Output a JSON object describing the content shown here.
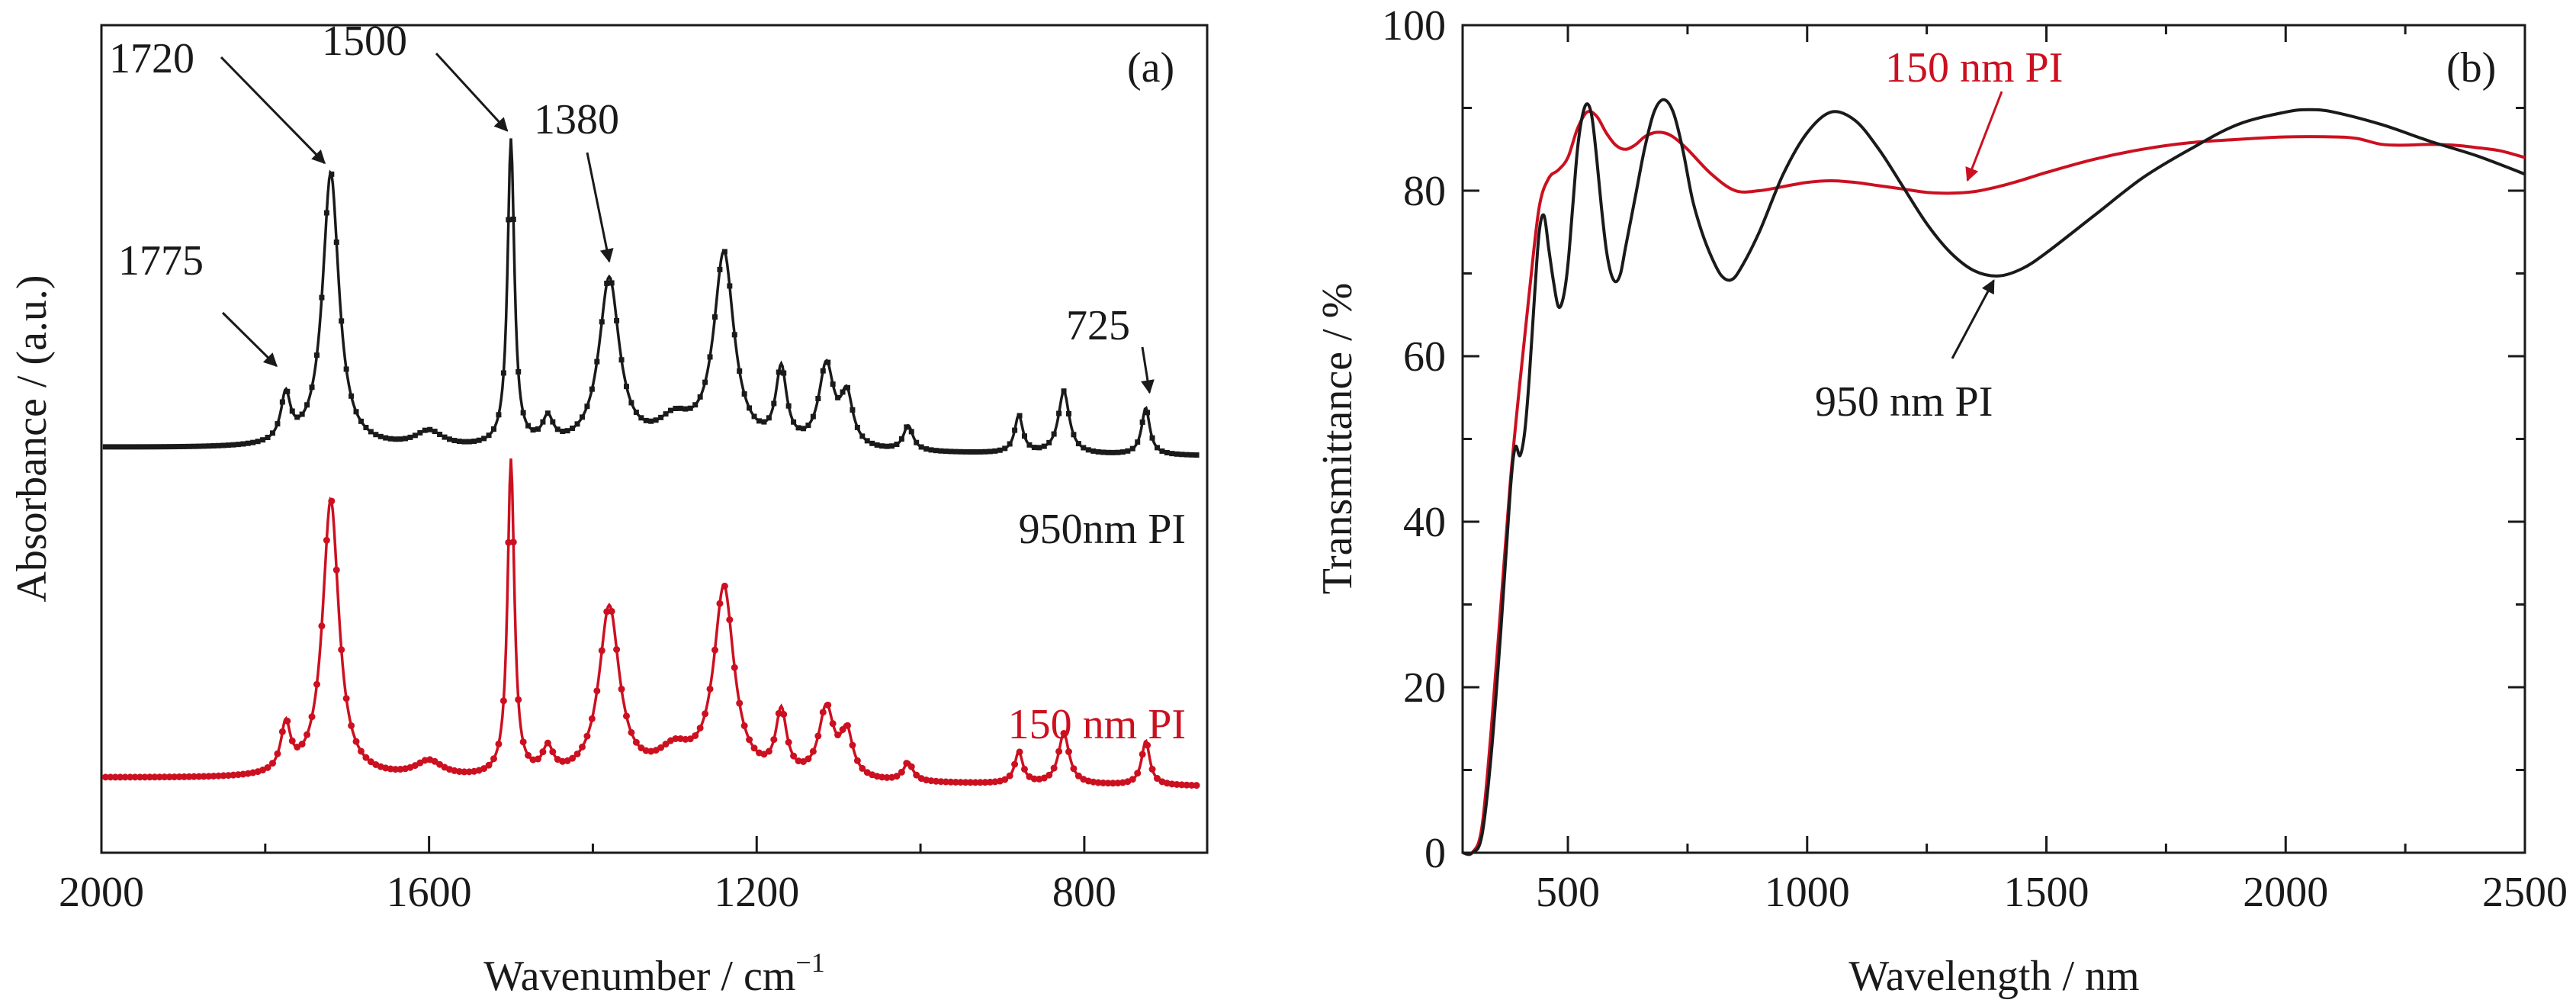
{
  "figure": {
    "panel_a_label": "(a)",
    "panel_b_label": "(b)"
  },
  "colors": {
    "black_series": "#1a1a1a",
    "red_series": "#cc1020",
    "axis": "#1a1a1a"
  },
  "chart_data": [
    {
      "type": "line",
      "panel": "(a)",
      "xlabel": "Wavenumber / cm",
      "xlabel_superscript": "−1",
      "ylabel": "Absorbance / (a.u.)",
      "xlim": [
        2000,
        650
      ],
      "x_reversed": true,
      "xticks": [
        2000,
        1600,
        1200,
        800
      ],
      "y_ticks_shown": false,
      "series": [
        {
          "name": "950nm PI",
          "color": "#1a1a1a",
          "baseline": 0.055,
          "baseline_tilt": -0.022,
          "peaks": [
            {
              "x": 1775,
              "h": 0.075,
              "w": 7
            },
            {
              "x": 1720,
              "h": 0.44,
              "w": 12
            },
            {
              "x": 1600,
              "h": 0.025,
              "w": 20
            },
            {
              "x": 1500,
              "h": 0.49,
              "w": 5
            },
            {
              "x": 1455,
              "h": 0.04,
              "w": 8
            },
            {
              "x": 1380,
              "h": 0.27,
              "w": 15
            },
            {
              "x": 1300,
              "h": 0.04,
              "w": 25
            },
            {
              "x": 1240,
              "h": 0.31,
              "w": 15
            },
            {
              "x": 1170,
              "h": 0.12,
              "w": 8
            },
            {
              "x": 1115,
              "h": 0.13,
              "w": 11
            },
            {
              "x": 1090,
              "h": 0.08,
              "w": 9
            },
            {
              "x": 1015,
              "h": 0.04,
              "w": 7
            },
            {
              "x": 880,
              "h": 0.06,
              "w": 6
            },
            {
              "x": 825,
              "h": 0.1,
              "w": 8
            },
            {
              "x": 725,
              "h": 0.075,
              "w": 6
            }
          ]
        },
        {
          "name": "150 nm PI",
          "color": "#cc1020",
          "baseline": 0.055,
          "baseline_tilt": -0.022,
          "peaks": [
            {
              "x": 1775,
              "h": 0.075,
              "w": 7
            },
            {
              "x": 1720,
              "h": 0.44,
              "w": 12
            },
            {
              "x": 1600,
              "h": 0.025,
              "w": 20
            },
            {
              "x": 1500,
              "h": 0.5,
              "w": 5
            },
            {
              "x": 1455,
              "h": 0.04,
              "w": 8
            },
            {
              "x": 1380,
              "h": 0.27,
              "w": 15
            },
            {
              "x": 1300,
              "h": 0.04,
              "w": 25
            },
            {
              "x": 1240,
              "h": 0.3,
              "w": 15
            },
            {
              "x": 1170,
              "h": 0.1,
              "w": 8
            },
            {
              "x": 1115,
              "h": 0.11,
              "w": 11
            },
            {
              "x": 1090,
              "h": 0.07,
              "w": 9
            },
            {
              "x": 1015,
              "h": 0.03,
              "w": 7
            },
            {
              "x": 880,
              "h": 0.05,
              "w": 6
            },
            {
              "x": 825,
              "h": 0.08,
              "w": 8
            },
            {
              "x": 725,
              "h": 0.07,
              "w": 6
            }
          ]
        }
      ],
      "annotations": [
        {
          "text": "1775",
          "peak_x": 1775
        },
        {
          "text": "1720",
          "peak_x": 1720
        },
        {
          "text": "1500",
          "peak_x": 1500
        },
        {
          "text": "1380",
          "peak_x": 1380
        },
        {
          "text": "725",
          "peak_x": 725
        }
      ]
    },
    {
      "type": "line",
      "panel": "(b)",
      "xlabel": "Wavelength / nm",
      "ylabel": "Transmittance  / %",
      "xlim": [
        280,
        2500
      ],
      "ylim": [
        0,
        100
      ],
      "xticks": [
        500,
        1000,
        1500,
        2000,
        2500
      ],
      "yticks": [
        0,
        20,
        40,
        60,
        80,
        100
      ],
      "series": [
        {
          "name": "150 nm PI",
          "color": "#cc1020",
          "points": [
            [
              280,
              0
            ],
            [
              300,
              0
            ],
            [
              320,
              3
            ],
            [
              340,
              15
            ],
            [
              360,
              30
            ],
            [
              380,
              45
            ],
            [
              400,
              57
            ],
            [
              420,
              68
            ],
            [
              440,
              78
            ],
            [
              460,
              81.5
            ],
            [
              480,
              82.5
            ],
            [
              500,
              84
            ],
            [
              520,
              87.5
            ],
            [
              540,
              89.5
            ],
            [
              560,
              89
            ],
            [
              580,
              87
            ],
            [
              600,
              85.5
            ],
            [
              620,
              85
            ],
            [
              640,
              85.5
            ],
            [
              660,
              86.5
            ],
            [
              680,
              87
            ],
            [
              700,
              87
            ],
            [
              720,
              86.5
            ],
            [
              750,
              85
            ],
            [
              800,
              82
            ],
            [
              850,
              80
            ],
            [
              900,
              80
            ],
            [
              950,
              80.5
            ],
            [
              1000,
              81
            ],
            [
              1050,
              81.2
            ],
            [
              1100,
              81
            ],
            [
              1150,
              80.6
            ],
            [
              1200,
              80.2
            ],
            [
              1250,
              79.8
            ],
            [
              1300,
              79.7
            ],
            [
              1350,
              79.9
            ],
            [
              1400,
              80.5
            ],
            [
              1450,
              81.3
            ],
            [
              1500,
              82.2
            ],
            [
              1600,
              83.8
            ],
            [
              1700,
              85
            ],
            [
              1800,
              85.8
            ],
            [
              1900,
              86.2
            ],
            [
              2000,
              86.5
            ],
            [
              2100,
              86.5
            ],
            [
              2150,
              86.3
            ],
            [
              2200,
              85.6
            ],
            [
              2250,
              85.5
            ],
            [
              2300,
              85.6
            ],
            [
              2350,
              85.5
            ],
            [
              2400,
              85.2
            ],
            [
              2450,
              84.8
            ],
            [
              2500,
              84
            ]
          ]
        },
        {
          "name": "950 nm  PI",
          "color": "#1a1a1a",
          "points": [
            [
              280,
              0
            ],
            [
              300,
              0
            ],
            [
              320,
              2
            ],
            [
              340,
              12
            ],
            [
              360,
              27
            ],
            [
              380,
              44
            ],
            [
              390,
              49
            ],
            [
              400,
              48
            ],
            [
              410,
              51
            ],
            [
              420,
              58
            ],
            [
              430,
              67
            ],
            [
              440,
              75
            ],
            [
              450,
              77
            ],
            [
              460,
              73
            ],
            [
              470,
              69
            ],
            [
              480,
              66
            ],
            [
              490,
              67
            ],
            [
              500,
              71
            ],
            [
              510,
              78
            ],
            [
              520,
              85
            ],
            [
              530,
              89
            ],
            [
              540,
              90.5
            ],
            [
              550,
              89
            ],
            [
              560,
              84
            ],
            [
              570,
              78
            ],
            [
              580,
              73
            ],
            [
              590,
              70
            ],
            [
              600,
              69
            ],
            [
              610,
              70
            ],
            [
              620,
              73
            ],
            [
              640,
              79
            ],
            [
              660,
              85
            ],
            [
              680,
              89.5
            ],
            [
              700,
              91
            ],
            [
              720,
              89.5
            ],
            [
              740,
              85
            ],
            [
              760,
              79
            ],
            [
              780,
              75
            ],
            [
              800,
              72
            ],
            [
              820,
              69.8
            ],
            [
              840,
              69.2
            ],
            [
              860,
              70.5
            ],
            [
              900,
              75
            ],
            [
              950,
              82
            ],
            [
              1000,
              87
            ],
            [
              1050,
              89.5
            ],
            [
              1100,
              88.5
            ],
            [
              1150,
              85
            ],
            [
              1200,
              80.5
            ],
            [
              1250,
              76
            ],
            [
              1300,
              72.5
            ],
            [
              1350,
              70.3
            ],
            [
              1400,
              69.7
            ],
            [
              1450,
              70.6
            ],
            [
              1500,
              72.5
            ],
            [
              1600,
              77
            ],
            [
              1700,
              81.5
            ],
            [
              1800,
              85
            ],
            [
              1900,
              88
            ],
            [
              2000,
              89.5
            ],
            [
              2050,
              89.8
            ],
            [
              2100,
              89.5
            ],
            [
              2200,
              88
            ],
            [
              2300,
              86
            ],
            [
              2400,
              84.2
            ],
            [
              2500,
              82
            ]
          ]
        }
      ],
      "annotations": [
        {
          "text": "150 nm PI",
          "color": "#cc1020"
        },
        {
          "text": "950 nm  PI",
          "color": "#1a1a1a"
        }
      ]
    }
  ]
}
